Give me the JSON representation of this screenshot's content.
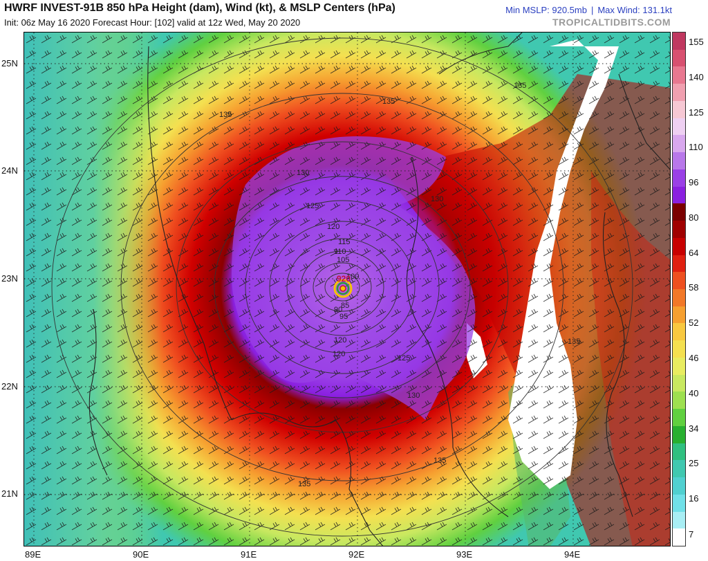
{
  "header": {
    "title": "HWRF INVEST-91B 850 hPa Height (dam), Wind (kt), & MSLP Centers (hPa)",
    "subtitle": "Init: 06z May 16 2020   Forecast Hour: [102]   valid at 12z Wed, May 20 2020",
    "min_mslp": "Min MSLP: 920.5mb",
    "separator": "|",
    "max_wind": "Max Wind: 131.1kt",
    "site": "TROPICALTIDBITS.COM"
  },
  "map": {
    "lat_labels": [
      "25N",
      "24N",
      "23N",
      "22N",
      "21N"
    ],
    "lon_labels": [
      "89E",
      "90E",
      "91E",
      "92E",
      "93E",
      "94E"
    ],
    "contour_labels": [
      "135",
      "135",
      "135",
      "130",
      "130",
      "125",
      "125",
      "120",
      "120",
      "115",
      "110",
      "105",
      "100",
      "95",
      "90",
      "85",
      "120",
      "130",
      "135",
      "135",
      "135"
    ],
    "center_label": "920",
    "center_colors": {
      "ring_outer": "#f5c400",
      "ring_mid": "#2a9a3a",
      "ring_inner": "#c01040"
    }
  },
  "colorbar": {
    "labels": [
      "155",
      "140",
      "125",
      "110",
      "96",
      "80",
      "64",
      "58",
      "52",
      "46",
      "40",
      "34",
      "25",
      "16",
      "7"
    ],
    "colors": [
      "#c03860",
      "#d85070",
      "#e87890",
      "#f0a0b0",
      "#f6c8d4",
      "#eed0f2",
      "#d8a8ee",
      "#b878ea",
      "#9a40e6",
      "#8a20e0",
      "#7a0000",
      "#a00000",
      "#c80000",
      "#e02010",
      "#ee5020",
      "#f27828",
      "#f6a030",
      "#f8c840",
      "#f4e050",
      "#e8ec60",
      "#c8e860",
      "#9ee050",
      "#60d040",
      "#28b030",
      "#30c080",
      "#40c8b0",
      "#50d0d0",
      "#70e0e8",
      "#a8eef4",
      "#ffffff"
    ]
  }
}
